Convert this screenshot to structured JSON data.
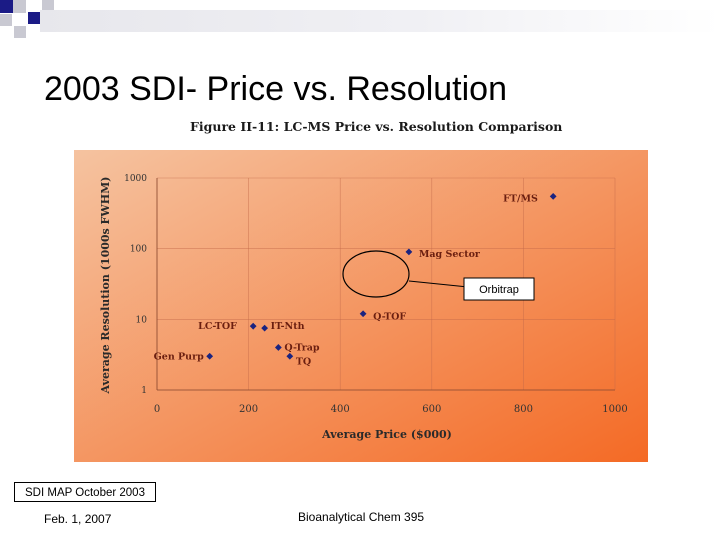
{
  "slide": {
    "title": "2003 SDI- Price vs. Resolution",
    "figure_caption": "Figure II-11: LC-MS Price vs. Resolution Comparison",
    "callout_label": "Orbitrap",
    "source_box": "SDI MAP October 2003",
    "footer_date": "Feb. 1, 2007",
    "footer_course": "Bioanalytical Chem 395"
  },
  "colors": {
    "accent_navy": "#1b1b86",
    "deco_gray": "#c9c9d2",
    "chart_bg_start": "#f5c3a0",
    "chart_bg_end": "#f46a25",
    "marker": "#1a2480"
  },
  "chart_data": {
    "type": "scatter",
    "xlabel": "Average Price ($000)",
    "ylabel": "Average Resolution (1000s FWHM)",
    "xlim": [
      0,
      1000
    ],
    "ylim": [
      1,
      1000
    ],
    "y_scale": "log",
    "x_ticks": [
      0,
      200,
      400,
      600,
      800,
      1000
    ],
    "x_tick_labels": [
      "0",
      "200",
      "400",
      "600",
      "800",
      "1000"
    ],
    "y_ticks": [
      1,
      10,
      100,
      1000
    ],
    "y_tick_labels": [
      "1",
      "10",
      "100",
      "1000"
    ],
    "grid": true,
    "points": [
      {
        "label": "FT/MS",
        "x": 865,
        "y": 550
      },
      {
        "label": "Mag Sector",
        "x": 550,
        "y": 90
      },
      {
        "label": "Q-TOF",
        "x": 450,
        "y": 12
      },
      {
        "label": "IT-Nth",
        "x": 235,
        "y": 7.5
      },
      {
        "label": "LC-TOF",
        "x": 210,
        "y": 8
      },
      {
        "label": "Q-Trap",
        "x": 265,
        "y": 4
      },
      {
        "label": "TQ",
        "x": 290,
        "y": 3
      },
      {
        "label": "Gen Purp",
        "x": 115,
        "y": 3
      }
    ]
  }
}
